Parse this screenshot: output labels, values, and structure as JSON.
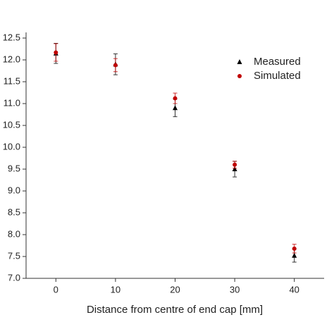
{
  "chart_data": {
    "type": "scatter",
    "x_label": "Distance from centre of end cap [mm]",
    "xlim": [
      -5,
      45
    ],
    "xticks": [
      0,
      10,
      20,
      30,
      40
    ],
    "ylim": [
      7,
      12.5
    ],
    "yticks": [
      {
        "value": 7,
        "label": "7.0"
      },
      7.5,
      {
        "value": 8,
        "label": "8.0"
      },
      8.5,
      {
        "value": 9,
        "label": "9.0"
      },
      9.5,
      {
        "value": 10,
        "label": "10.0"
      },
      10.5,
      {
        "value": 11,
        "label": "11.0"
      },
      11.5,
      {
        "value": 12,
        "label": "12.0"
      },
      12.5
    ],
    "legend": "upper right",
    "series": [
      {
        "name": "Measured",
        "color": "#000000",
        "marker": "triangle",
        "x": [
          0,
          10,
          20,
          30,
          40
        ],
        "values": [
          12.15,
          11.9,
          10.9,
          9.5,
          7.52
        ],
        "errors": [
          0.23,
          0.24,
          0.2,
          0.18,
          0.15
        ]
      },
      {
        "name": "Simulated",
        "color": "#c00000",
        "marker": "circle",
        "x": [
          0,
          10,
          20,
          30,
          40
        ],
        "values": [
          12.17,
          11.88,
          11.12,
          9.6,
          7.68
        ],
        "errors": [
          0.2,
          0.15,
          0.12,
          0.08,
          0.1
        ]
      }
    ]
  }
}
